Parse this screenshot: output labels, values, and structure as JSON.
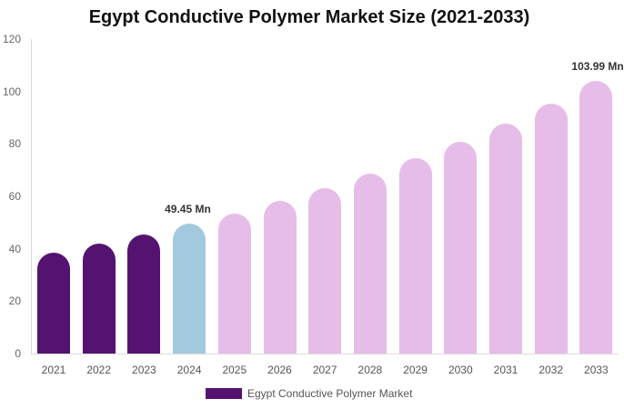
{
  "chart_data": {
    "type": "bar",
    "title": "Egypt Conductive Polymer Market Size (2021-2033)",
    "xlabel": "",
    "ylabel": "",
    "ylim": [
      0,
      120
    ],
    "yticks": [
      0,
      20,
      40,
      60,
      80,
      100,
      120
    ],
    "grid": false,
    "legend_position": "bottom",
    "categories": [
      "2021",
      "2022",
      "2023",
      "2024",
      "2025",
      "2026",
      "2027",
      "2028",
      "2029",
      "2030",
      "2031",
      "2032",
      "2033"
    ],
    "series": [
      {
        "name": "Egypt Conductive Polymer Market",
        "values": [
          38.5,
          42.0,
          45.4,
          49.45,
          53.4,
          58.3,
          63.1,
          68.7,
          74.6,
          80.8,
          87.8,
          95.4,
          103.99
        ]
      }
    ],
    "bar_colors": [
      "#541371",
      "#541371",
      "#541371",
      "#a3c9de",
      "#e6bde8",
      "#e6bde8",
      "#e6bde8",
      "#e6bde8",
      "#e6bde8",
      "#e6bde8",
      "#e6bde8",
      "#e6bde8",
      "#e6bde8"
    ],
    "annotations": [
      {
        "category": "2024",
        "text": "49.45 Mn"
      },
      {
        "category": "2033",
        "text": "103.99 Mn"
      }
    ]
  },
  "labels": {
    "title": "Egypt Conductive Polymer Market Size (2021-2033)",
    "legend": "Egypt Conductive Polymer Market",
    "yticks": [
      "0",
      "20",
      "40",
      "60",
      "80",
      "100",
      "120"
    ],
    "ann_2024": "49.45 Mn",
    "ann_2033": "103.99 Mn"
  }
}
